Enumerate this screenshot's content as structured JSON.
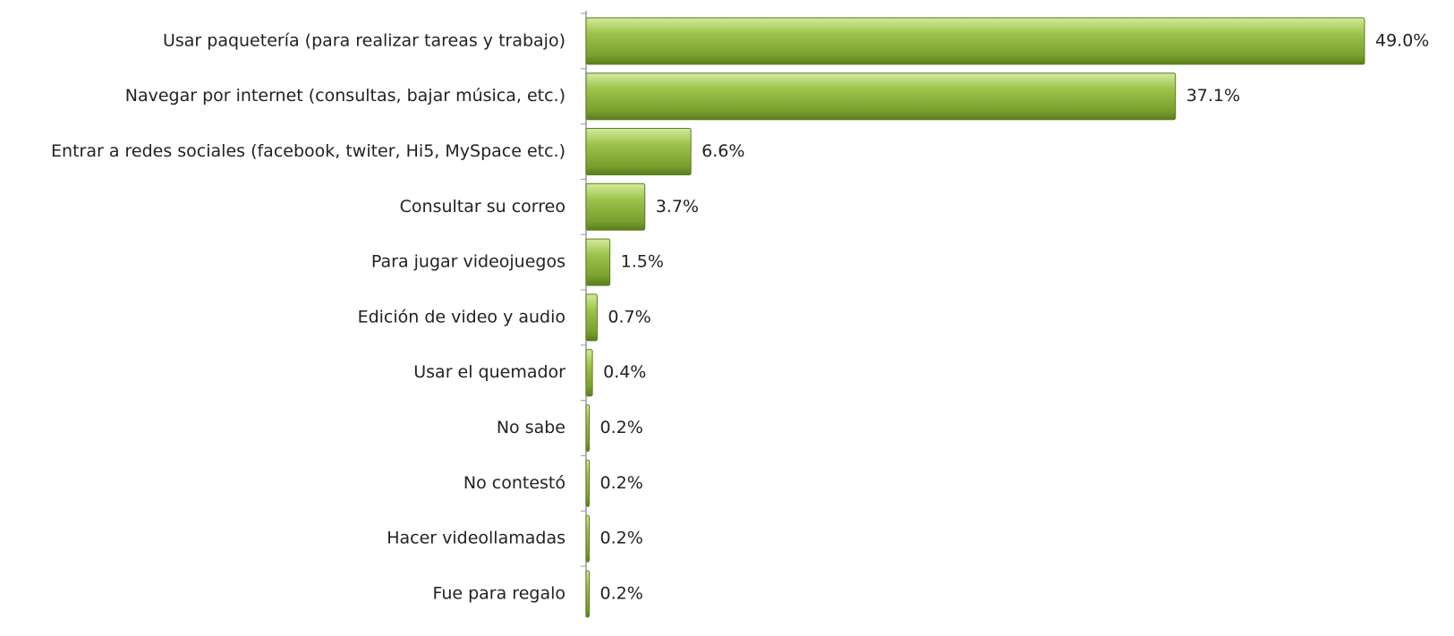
{
  "chart_data": {
    "type": "barh",
    "categories": [
      "Usar paquetería (para realizar tareas y trabajo)",
      "Navegar por internet (consultas, bajar música, etc.)",
      "Entrar a redes sociales (facebook, twiter, Hi5, MySpace etc.)",
      "Consultar su correo",
      "Para jugar videojuegos",
      "Edición de video y audio",
      "Usar el quemador",
      "No sabe",
      "No contestó",
      "Hacer videollamadas",
      "Fue para regalo"
    ],
    "values": [
      49.0,
      37.1,
      6.6,
      3.7,
      1.5,
      0.7,
      0.4,
      0.2,
      0.2,
      0.2,
      0.2
    ],
    "value_labels": [
      "49.0%",
      "37.1%",
      "6.6%",
      "3.7%",
      "1.5%",
      "0.7%",
      "0.4%",
      "0.2%",
      "0.2%",
      "0.2%",
      "0.2%"
    ],
    "color": "#8db33a"
  }
}
